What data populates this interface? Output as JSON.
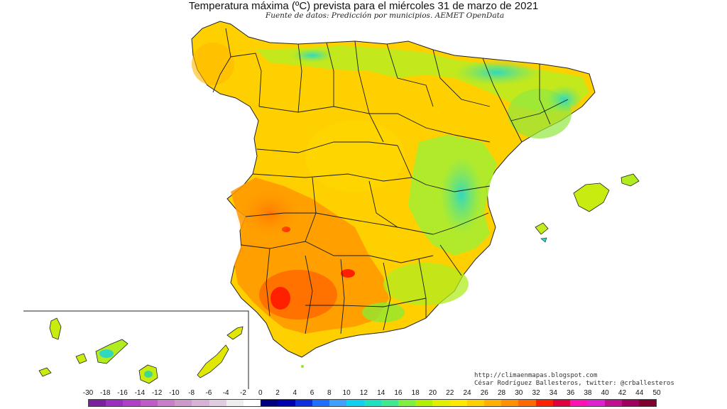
{
  "header": {
    "title": "Temperatura máxima (ºC) prevista para el miércoles 31 de marzo de 2021",
    "subtitle": "Fuente de datos: Predicción por municipios. AEMET OpenData"
  },
  "credits": {
    "line1": "http://climaenmapas.blogspot.com",
    "line2": "César Rodríguez Ballesteros, twitter: @crballesteros"
  },
  "legend": {
    "labels": [
      "-30",
      "-18",
      "-16",
      "-14",
      "-12",
      "-10",
      "-8",
      "-6",
      "-4",
      "-2",
      "0",
      "2",
      "4",
      "6",
      "8",
      "10",
      "12",
      "14",
      "16",
      "18",
      "20",
      "22",
      "24",
      "26",
      "28",
      "30",
      "32",
      "34",
      "36",
      "38",
      "40",
      "42",
      "44",
      "50"
    ],
    "colors": [
      "#7e1fa0",
      "#9b30c0",
      "#b040c8",
      "#c05cc8",
      "#c87ec8",
      "#cc99c8",
      "#d7b2d7",
      "#e0cce0",
      "#eeeeee",
      "#ffffff",
      "#000080",
      "#0000b0",
      "#1030e0",
      "#2070ff",
      "#40a0ff",
      "#10d0f0",
      "#20e0c0",
      "#40e890",
      "#80f040",
      "#b0f000",
      "#e0f000",
      "#ffe800",
      "#ffd000",
      "#ffb000",
      "#ff9000",
      "#ff6800",
      "#ff2000",
      "#e00040",
      "#ff10b0",
      "#e020d0",
      "#c01090",
      "#a00060",
      "#800030"
    ]
  }
}
